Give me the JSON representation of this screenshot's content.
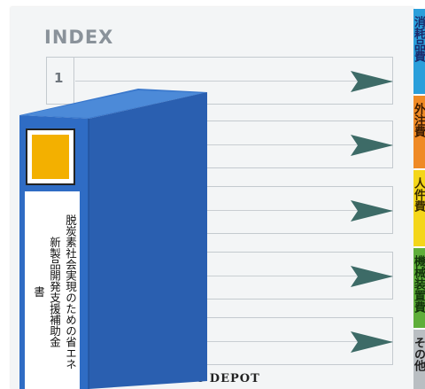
{
  "index": {
    "title": "INDEX",
    "rows": [
      {
        "number": "1"
      }
    ],
    "brand": "e DEPOT"
  },
  "tabs": [
    {
      "label": "消耗品費",
      "color": "#2a9fdb",
      "text_color": "#1b2a6b"
    },
    {
      "label": "外注費",
      "color": "#ef8a25",
      "text_color": "#3a1a00"
    },
    {
      "label": "人件費",
      "color": "#f4d61a",
      "text_color": "#3a2c00"
    },
    {
      "label": "機械装置費",
      "color": "#5fae3a",
      "text_color": "#12340a"
    },
    {
      "label": "その他",
      "color": "#b9bec2",
      "text_color": "#222222"
    }
  ],
  "binder": {
    "spine_label_line1": "脱炭素社会実現のための省エネ",
    "spine_label_line2": "新製品開発支援補助金",
    "spine_label_line3": "書",
    "cover_color": "#2a5fb0",
    "spine_color": "#2f6cc4",
    "label_window_color": "#f3b000"
  },
  "colors": {
    "arrow": "#3d6b67",
    "sheet": "#f3f5f6"
  }
}
